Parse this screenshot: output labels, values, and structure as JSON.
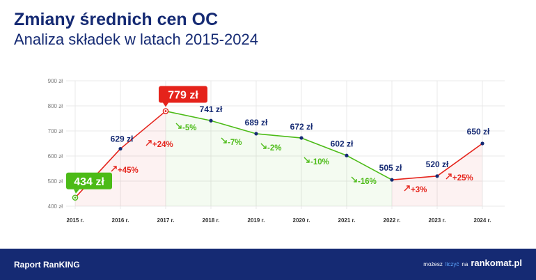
{
  "header": {
    "title": "Zmiany średnich cen OC",
    "subtitle": "Analiza składek w latach 2015-2024"
  },
  "footer": {
    "left": "Raport RanKING",
    "right_prefix": "możesz",
    "right_accent": "liczyć",
    "right_mid": "na",
    "brand": "rankomat.pl"
  },
  "colors": {
    "navy": "#152a73",
    "green": "#4cbb17",
    "red": "#e5231b",
    "grid": "#e8e8e8"
  },
  "chart_data": {
    "type": "line",
    "x": [
      "2015 r.",
      "2016 r.",
      "2017 r.",
      "2018 r.",
      "2019 r.",
      "2020 r.",
      "2021 r.",
      "2022 r.",
      "2023 r.",
      "2024 r."
    ],
    "values": [
      434,
      629,
      779,
      741,
      689,
      672,
      602,
      505,
      520,
      650
    ],
    "value_labels": [
      "434 zł",
      "629 zł",
      "779 zł",
      "741 zł",
      "689 zł",
      "672 zł",
      "602 zł",
      "505 zł",
      "520 zł",
      "650 zł"
    ],
    "changes": [
      "+45%",
      "+24%",
      "-5%",
      "-7%",
      "-2%",
      "-10%",
      "-16%",
      "+3%",
      "+25%"
    ],
    "ylim": [
      400,
      900
    ],
    "yticks": [
      400,
      500,
      600,
      700,
      800,
      900
    ],
    "ytick_labels": [
      "400 zł",
      "500 zł",
      "600 zł",
      "700 zł",
      "800 zł",
      "900 zł"
    ],
    "grid": true
  }
}
